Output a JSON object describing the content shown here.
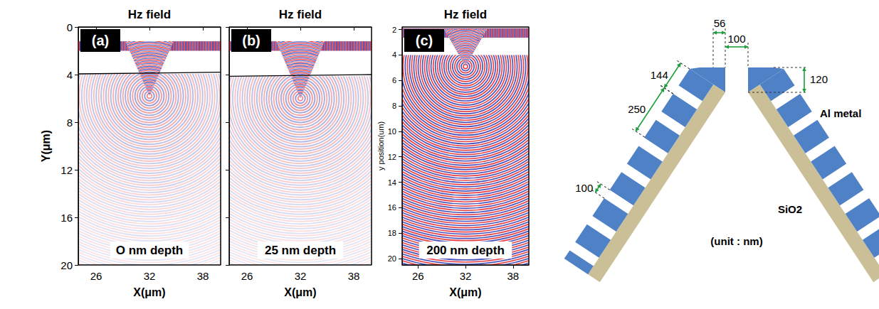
{
  "chart_data": [
    {
      "type": "field_map",
      "panel_label": "(a)",
      "title": "Hz field",
      "annotation": "O nm depth",
      "x_label": "X(μm)",
      "y_label": "Y(μm)",
      "xlim": [
        24,
        40
      ],
      "ylim": [
        0,
        20
      ],
      "xticks": [
        26,
        32,
        38
      ],
      "yticks": [
        0,
        4,
        8,
        12,
        16,
        20
      ]
    },
    {
      "type": "field_map",
      "panel_label": "(b)",
      "title": "Hz field",
      "annotation": "25 nm depth",
      "x_label": "X(μm)",
      "xlim": [
        24,
        40
      ],
      "ylim": [
        0,
        20
      ],
      "xticks": [
        26,
        32,
        38
      ],
      "yticks": [
        0,
        4,
        8,
        12,
        16,
        20
      ],
      "tick_labels": "x"
    },
    {
      "type": "field_map",
      "panel_label": "(c)",
      "title": "Hz field",
      "annotation": "200 nm depth",
      "x_label": "X(μm)",
      "y_label": "y position(um)",
      "xlim": [
        24,
        40
      ],
      "ylim": [
        1.8,
        20.5
      ],
      "xticks": [
        26,
        32,
        38
      ],
      "yticks": [
        2,
        4,
        6,
        8,
        10,
        12,
        14,
        16,
        18,
        20
      ]
    }
  ],
  "schematic": {
    "dimensions": [
      56,
      100,
      120,
      144,
      250,
      100
    ],
    "materials": [
      "Al metal",
      "SiO2"
    ],
    "unit": "(unit : nm)"
  }
}
